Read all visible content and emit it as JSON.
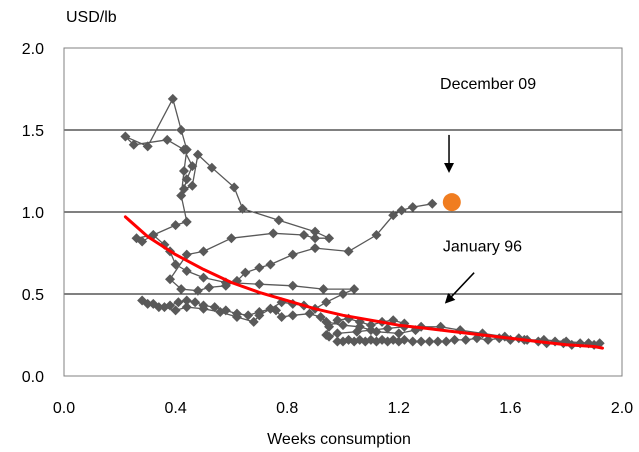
{
  "chart_data": {
    "type": "scatter",
    "unit_label": "USD/lb",
    "xlabel": "Weeks consumption",
    "ylabel": "",
    "xlim": [
      0.0,
      2.0
    ],
    "ylim": [
      0.0,
      2.0
    ],
    "x_ticks": [
      "0.0",
      "0.4",
      "0.8",
      "1.2",
      "1.6",
      "2.0"
    ],
    "y_ticks": [
      "0.0",
      "0.5",
      "1.0",
      "1.5",
      "2.0"
    ],
    "grid": "horizontal",
    "legend": "none",
    "colors": {
      "series": "#595959",
      "markers": "#595959",
      "trend": "#ff0000",
      "highlight": "#f07d20"
    },
    "series": [
      {
        "kind": "connected-path",
        "points": [
          [
            0.98,
            0.21
          ],
          [
            1.0,
            0.21
          ],
          [
            1.02,
            0.22
          ],
          [
            1.04,
            0.21
          ],
          [
            1.06,
            0.22
          ],
          [
            1.08,
            0.21
          ],
          [
            1.1,
            0.22
          ],
          [
            1.12,
            0.21
          ],
          [
            1.14,
            0.22
          ],
          [
            1.16,
            0.21
          ],
          [
            1.18,
            0.22
          ],
          [
            1.2,
            0.21
          ],
          [
            1.22,
            0.22
          ],
          [
            1.25,
            0.21
          ],
          [
            1.28,
            0.21
          ],
          [
            1.31,
            0.21
          ],
          [
            1.34,
            0.21
          ],
          [
            1.37,
            0.21
          ],
          [
            1.4,
            0.22
          ],
          [
            1.44,
            0.22
          ],
          [
            1.48,
            0.23
          ],
          [
            1.52,
            0.22
          ],
          [
            1.56,
            0.23
          ],
          [
            1.6,
            0.22
          ],
          [
            1.63,
            0.23
          ],
          [
            1.66,
            0.22
          ],
          [
            1.7,
            0.21
          ],
          [
            1.73,
            0.2
          ],
          [
            1.76,
            0.21
          ],
          [
            1.79,
            0.2
          ],
          [
            1.82,
            0.19
          ],
          [
            1.85,
            0.2
          ],
          [
            1.88,
            0.2
          ],
          [
            1.9,
            0.19
          ],
          [
            1.92,
            0.2
          ],
          [
            1.88,
            0.2
          ],
          [
            1.8,
            0.21
          ],
          [
            1.72,
            0.22
          ],
          [
            1.65,
            0.22
          ],
          [
            1.58,
            0.24
          ],
          [
            1.5,
            0.26
          ],
          [
            1.42,
            0.28
          ],
          [
            1.35,
            0.3
          ],
          [
            1.28,
            0.3
          ],
          [
            1.22,
            0.3
          ],
          [
            1.16,
            0.29
          ],
          [
            1.1,
            0.28
          ],
          [
            1.05,
            0.27
          ],
          [
            0.98,
            0.26
          ],
          [
            0.95,
            0.24
          ],
          [
            0.94,
            0.25
          ],
          [
            0.95,
            0.3
          ],
          [
            0.98,
            0.34
          ],
          [
            1.02,
            0.35
          ],
          [
            1.06,
            0.33
          ],
          [
            1.1,
            0.31
          ],
          [
            1.14,
            0.33
          ],
          [
            1.18,
            0.34
          ],
          [
            1.22,
            0.32
          ],
          [
            1.26,
            0.28
          ],
          [
            1.2,
            0.26
          ],
          [
            1.12,
            0.27
          ],
          [
            1.06,
            0.3
          ],
          [
            1.0,
            0.31
          ],
          [
            0.94,
            0.33
          ],
          [
            0.92,
            0.36
          ],
          [
            0.88,
            0.38
          ],
          [
            0.82,
            0.37
          ],
          [
            0.78,
            0.36
          ],
          [
            0.76,
            0.4
          ],
          [
            0.74,
            0.41
          ],
          [
            0.7,
            0.37
          ],
          [
            0.68,
            0.33
          ],
          [
            0.62,
            0.36
          ],
          [
            0.56,
            0.39
          ],
          [
            0.5,
            0.41
          ],
          [
            0.44,
            0.42
          ],
          [
            0.4,
            0.4
          ],
          [
            0.36,
            0.42
          ],
          [
            0.32,
            0.44
          ],
          [
            0.28,
            0.46
          ],
          [
            0.3,
            0.44
          ],
          [
            0.34,
            0.42
          ],
          [
            0.38,
            0.43
          ],
          [
            0.41,
            0.45
          ],
          [
            0.44,
            0.46
          ],
          [
            0.47,
            0.45
          ],
          [
            0.5,
            0.43
          ],
          [
            0.54,
            0.42
          ],
          [
            0.58,
            0.4
          ],
          [
            0.62,
            0.38
          ],
          [
            0.66,
            0.37
          ],
          [
            0.7,
            0.39
          ],
          [
            0.74,
            0.41
          ],
          [
            0.78,
            0.45
          ],
          [
            0.82,
            0.44
          ],
          [
            0.86,
            0.43
          ],
          [
            0.9,
            0.41
          ],
          [
            0.94,
            0.45
          ],
          [
            1.0,
            0.5
          ],
          [
            1.04,
            0.53
          ],
          [
            0.93,
            0.53
          ],
          [
            0.82,
            0.55
          ],
          [
            0.7,
            0.56
          ],
          [
            0.58,
            0.57
          ],
          [
            0.5,
            0.6
          ],
          [
            0.44,
            0.64
          ],
          [
            0.4,
            0.68
          ],
          [
            0.38,
            0.76
          ],
          [
            0.36,
            0.8
          ],
          [
            0.32,
            0.86
          ],
          [
            0.28,
            0.82
          ],
          [
            0.26,
            0.84
          ],
          [
            0.32,
            0.86
          ],
          [
            0.4,
            0.92
          ],
          [
            0.44,
            0.94
          ],
          [
            0.42,
            1.1
          ],
          [
            0.43,
            1.25
          ],
          [
            0.44,
            1.38
          ],
          [
            0.42,
            1.5
          ],
          [
            0.39,
            1.69
          ],
          [
            0.3,
            1.4
          ],
          [
            0.22,
            1.46
          ],
          [
            0.25,
            1.41
          ],
          [
            0.37,
            1.44
          ],
          [
            0.43,
            1.38
          ],
          [
            0.46,
            1.28
          ],
          [
            0.44,
            1.2
          ],
          [
            0.43,
            1.14
          ],
          [
            0.46,
            1.16
          ],
          [
            0.48,
            1.35
          ],
          [
            0.53,
            1.27
          ],
          [
            0.61,
            1.15
          ],
          [
            0.64,
            1.02
          ],
          [
            0.77,
            0.95
          ],
          [
            0.9,
            0.88
          ],
          [
            0.95,
            0.84
          ],
          [
            0.9,
            0.84
          ],
          [
            0.86,
            0.86
          ],
          [
            0.75,
            0.87
          ],
          [
            0.6,
            0.84
          ],
          [
            0.5,
            0.76
          ],
          [
            0.44,
            0.74
          ],
          [
            0.38,
            0.59
          ],
          [
            0.42,
            0.53
          ],
          [
            0.48,
            0.52
          ],
          [
            0.52,
            0.54
          ],
          [
            0.58,
            0.55
          ],
          [
            0.62,
            0.58
          ],
          [
            0.65,
            0.63
          ],
          [
            0.7,
            0.66
          ],
          [
            0.74,
            0.68
          ],
          [
            0.82,
            0.74
          ],
          [
            0.9,
            0.78
          ],
          [
            1.02,
            0.76
          ],
          [
            1.12,
            0.86
          ],
          [
            1.18,
            0.98
          ],
          [
            1.21,
            1.01
          ],
          [
            1.25,
            1.03
          ],
          [
            1.32,
            1.05
          ]
        ]
      }
    ],
    "highlight_point": {
      "label": "December 09",
      "x": 1.39,
      "y": 1.06
    },
    "trend": {
      "x": [
        0.22,
        0.3,
        0.4,
        0.5,
        0.6,
        0.7,
        0.8,
        0.9,
        1.0,
        1.1,
        1.2,
        1.3,
        1.4,
        1.5,
        1.6,
        1.7,
        1.8,
        1.9,
        1.93
      ],
      "y": [
        0.97,
        0.85,
        0.74,
        0.65,
        0.57,
        0.51,
        0.46,
        0.41,
        0.37,
        0.34,
        0.31,
        0.29,
        0.27,
        0.25,
        0.23,
        0.21,
        0.19,
        0.18,
        0.17
      ]
    },
    "annotations": [
      {
        "label": "December 09",
        "text_x": 1.52,
        "text_y": 1.75,
        "arrow_from": [
          1.38,
          1.47
        ],
        "arrow_to": [
          1.38,
          1.25
        ]
      },
      {
        "label": "January 96",
        "text_x": 1.5,
        "text_y": 0.76,
        "arrow_from": [
          1.47,
          0.63
        ],
        "arrow_to": [
          1.37,
          0.45
        ]
      }
    ]
  }
}
